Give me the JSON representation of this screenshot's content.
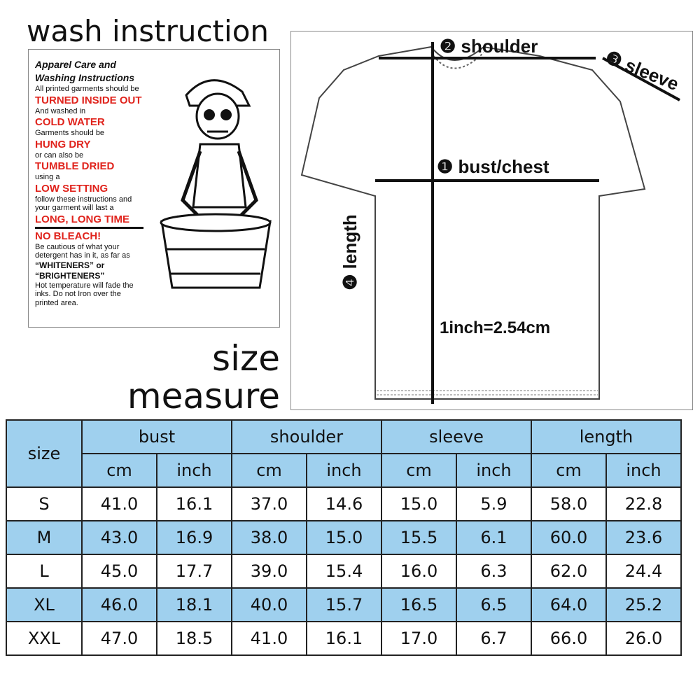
{
  "wash_title": "wash instruction",
  "care": {
    "lines": [
      {
        "t": "Apparel Care and",
        "s": "hd"
      },
      {
        "t": "Washing Instructions",
        "s": "hd"
      },
      {
        "t": "All printed garments should be",
        "s": "n"
      },
      {
        "t": "TURNED INSIDE OUT",
        "s": "red"
      },
      {
        "t": "And washed in",
        "s": "n"
      },
      {
        "t": "COLD WATER",
        "s": "red"
      },
      {
        "t": "Garments should be",
        "s": "n"
      },
      {
        "t": "HUNG DRY",
        "s": "red"
      },
      {
        "t": "or can also be",
        "s": "n"
      },
      {
        "t": "TUMBLE DRIED",
        "s": "red"
      },
      {
        "t": "using a",
        "s": "n"
      },
      {
        "t": "LOW SETTING",
        "s": "red"
      },
      {
        "t": "follow these instructions and",
        "s": "n"
      },
      {
        "t": "your garment will last a",
        "s": "n"
      },
      {
        "t": "LONG, LONG TIME",
        "s": "red"
      },
      {
        "t": "NO BLEACH!",
        "s": "red"
      },
      {
        "t": "Be cautious of what your",
        "s": "n"
      },
      {
        "t": "detergent has in it, as far as",
        "s": "n"
      },
      {
        "t": "“WHITENERS” or",
        "s": "blk"
      },
      {
        "t": "“BRIGHTENERS”",
        "s": "blk"
      },
      {
        "t": "Hot temperature will fade the",
        "s": "n"
      },
      {
        "t": "inks. Do not Iron over the",
        "s": "n"
      },
      {
        "t": "printed area.",
        "s": "n"
      }
    ]
  },
  "size_measure": [
    "size",
    "measure"
  ],
  "diagram": {
    "shoulder": {
      "n": "2",
      "label": "shoulder"
    },
    "sleeve": {
      "n": "3",
      "label": "sleeve"
    },
    "bust": {
      "n": "1",
      "label": "bust/chest"
    },
    "length": {
      "n": "4",
      "label": "length"
    },
    "conversion": "1inch=2.54cm"
  },
  "table": {
    "size_header": "size",
    "groups": [
      "bust",
      "shoulder",
      "sleeve",
      "length"
    ],
    "units": [
      "cm",
      "inch"
    ],
    "rows": [
      [
        "S",
        "41.0",
        "16.1",
        "37.0",
        "14.6",
        "15.0",
        "5.9",
        "58.0",
        "22.8"
      ],
      [
        "M",
        "43.0",
        "16.9",
        "38.0",
        "15.0",
        "15.5",
        "6.1",
        "60.0",
        "23.6"
      ],
      [
        "L",
        "45.0",
        "17.7",
        "39.0",
        "15.4",
        "16.0",
        "6.3",
        "62.0",
        "24.4"
      ],
      [
        "XL",
        "46.0",
        "18.1",
        "40.0",
        "15.7",
        "16.5",
        "6.5",
        "64.0",
        "25.2"
      ],
      [
        "XXL",
        "47.0",
        "18.5",
        "41.0",
        "16.1",
        "17.0",
        "6.7",
        "66.0",
        "26.0"
      ]
    ]
  },
  "colors": {
    "header_blue": "#9fd0ee",
    "care_red": "#e0231c"
  }
}
